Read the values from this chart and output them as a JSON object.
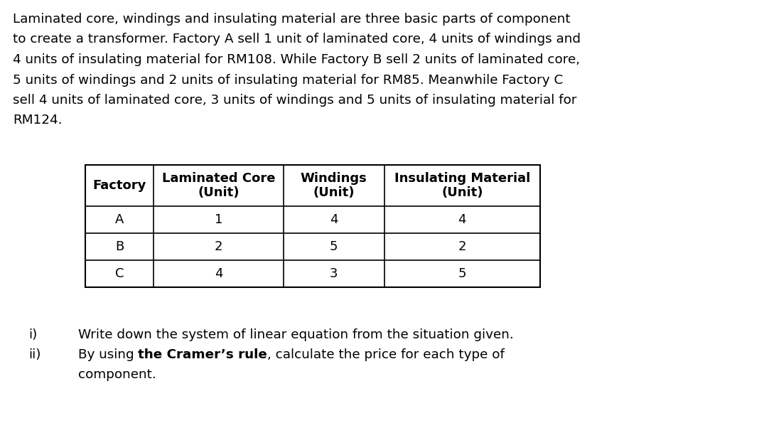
{
  "paragraph_lines": [
    "Laminated core, windings and insulating material are three basic parts of component",
    "to create a transformer. Factory A sell 1 unit of laminated core, 4 units of windings and",
    "4 units of insulating material for RM108. While Factory B sell 2 units of laminated core,",
    "5 units of windings and 2 units of insulating material for RM85. Meanwhile Factory C",
    "sell 4 units of laminated core, 3 units of windings and 5 units of insulating material for",
    "RM124."
  ],
  "table_headers": [
    "Factory",
    "Laminated Core\n(Unit)",
    "Windings\n(Unit)",
    "Insulating Material\n(Unit)"
  ],
  "table_data": [
    [
      "A",
      "1",
      "4",
      "4"
    ],
    [
      "B",
      "2",
      "5",
      "2"
    ],
    [
      "C",
      "4",
      "3",
      "5"
    ]
  ],
  "item_i_label": "i)",
  "item_i_text": "Write down the system of linear equation from the situation given.",
  "item_ii_label": "ii)",
  "item_ii_prefix": "By using ",
  "item_ii_bold": "the Cramer’s rule",
  "item_ii_suffix": ", calculate the price for each type of",
  "item_ii_line2": "component.",
  "bg_color": "#ffffff",
  "text_color": "#000000",
  "font_size": 13.2,
  "table_font_size": 13.0
}
